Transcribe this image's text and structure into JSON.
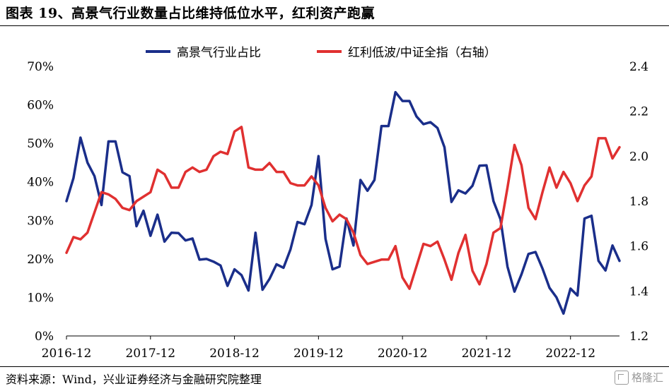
{
  "title": "图表 19、高景气行业数量占比维持低位水平，红利资产跑赢",
  "source": "资料来源：Wind，兴业证券经济与金融研究院整理",
  "watermark": "格隆汇",
  "colors": {
    "series1": "#1a2e8a",
    "series2": "#e03030"
  },
  "chart_data": {
    "type": "line",
    "legend_position": "top",
    "x_tick_labels": [
      "2016-12",
      "2017-12",
      "2018-12",
      "2019-12",
      "2020-12",
      "2021-12",
      "2022-12"
    ],
    "y_left": {
      "ylim": [
        0,
        70
      ],
      "ticks": [
        0,
        10,
        20,
        30,
        40,
        50,
        60,
        70
      ],
      "tick_labels": [
        "0%",
        "10%",
        "20%",
        "30%",
        "40%",
        "50%",
        "60%",
        "70%"
      ]
    },
    "y_right": {
      "ylim": [
        1.2,
        2.4
      ],
      "ticks": [
        1.2,
        1.4,
        1.6,
        1.8,
        2.0,
        2.2,
        2.4
      ],
      "tick_labels": [
        "1.2",
        "1.4",
        "1.6",
        "1.8",
        "2.0",
        "2.2",
        "2.4"
      ]
    },
    "start": "2016-12",
    "series": [
      {
        "name": "高景气行业占比",
        "axis": "left",
        "color": "#1a2e8a",
        "values": [
          35,
          41,
          51.5,
          45,
          41.5,
          34,
          50.5,
          50.5,
          42.5,
          41.5,
          28.5,
          32.5,
          26,
          31.5,
          24.5,
          26.8,
          26.7,
          24.8,
          25.3,
          19.8,
          20,
          19.3,
          18.3,
          13,
          17.3,
          15.8,
          11.8,
          26.8,
          12,
          14.8,
          18.6,
          17.7,
          22.5,
          29.6,
          29,
          34,
          46.7,
          25.2,
          17.3,
          18,
          30.5,
          23.5,
          40.5,
          37.7,
          40.5,
          54.5,
          54.5,
          63.3,
          61,
          61,
          57,
          55,
          55.5,
          54,
          49,
          34.8,
          37.8,
          37,
          39,
          44.2,
          44.3,
          35,
          30.3,
          18,
          11.5,
          16,
          21.3,
          21.8,
          17.5,
          12.5,
          10,
          5.8,
          12.3,
          10.5,
          30.5,
          31.2,
          19.5,
          17,
          23.5,
          19.5
        ]
      },
      {
        "name": "红利低波/中证全指（右轴）",
        "axis": "right",
        "color": "#e03030",
        "values": [
          1.57,
          1.64,
          1.63,
          1.66,
          1.75,
          1.84,
          1.83,
          1.81,
          1.77,
          1.76,
          1.8,
          1.82,
          1.84,
          1.94,
          1.92,
          1.86,
          1.86,
          1.93,
          1.95,
          1.93,
          1.94,
          2.0,
          2.02,
          2.01,
          2.11,
          2.13,
          1.95,
          1.94,
          1.94,
          1.97,
          1.93,
          1.93,
          1.88,
          1.87,
          1.87,
          1.91,
          1.87,
          1.77,
          1.71,
          1.74,
          1.72,
          1.66,
          1.56,
          1.52,
          1.53,
          1.54,
          1.54,
          1.6,
          1.46,
          1.41,
          1.51,
          1.61,
          1.6,
          1.62,
          1.54,
          1.45,
          1.57,
          1.65,
          1.49,
          1.43,
          1.52,
          1.66,
          1.68,
          1.86,
          2.05,
          1.96,
          1.77,
          1.72,
          1.84,
          1.95,
          1.86,
          1.93,
          1.88,
          1.8,
          1.87,
          1.91,
          2.08,
          2.08,
          1.99,
          2.04
        ]
      }
    ]
  }
}
